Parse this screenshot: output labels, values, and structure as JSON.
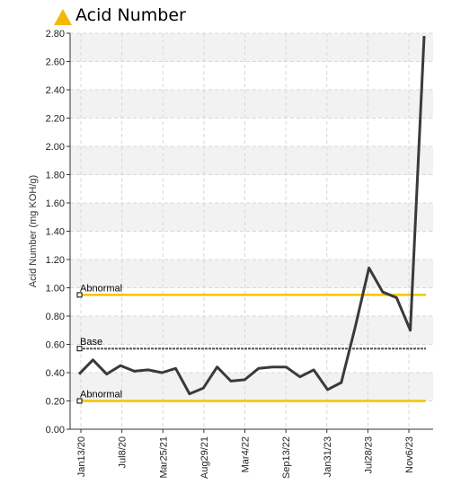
{
  "chart_data": {
    "type": "line",
    "title": "Acid Number",
    "ylabel": "Acid Number (mg KOH/g)",
    "ylim": [
      0,
      2.8
    ],
    "yticks": [
      "0.00",
      "0.20",
      "0.40",
      "0.60",
      "0.80",
      "1.00",
      "1.20",
      "1.40",
      "1.60",
      "1.80",
      "2.00",
      "2.20",
      "2.40",
      "2.60",
      "2.80"
    ],
    "grid": true,
    "xticks": [
      "Jan13/20",
      "Jul8/20",
      "Mar25/21",
      "Aug29/21",
      "Mar4/22",
      "Sep13/22",
      "Jan31/23",
      "Jul28/23",
      "Nov6/23"
    ],
    "series": [
      {
        "color": "#3a3a3a",
        "values": [
          0.39,
          0.49,
          0.39,
          0.45,
          0.41,
          0.42,
          0.4,
          0.43,
          0.25,
          0.29,
          0.44,
          0.34,
          0.35,
          0.43,
          0.44,
          0.44,
          0.37,
          0.42,
          0.28,
          0.33,
          0.72,
          1.14,
          0.97,
          0.93,
          0.7,
          2.78
        ]
      }
    ],
    "reference_lines": [
      {
        "label": "Abnormal",
        "value": 0.95,
        "color": "#f5c400"
      },
      {
        "label": "Base",
        "value": 0.57,
        "color": "#555555"
      },
      {
        "label": "Abnormal",
        "value": 0.2,
        "color": "#f5c400"
      }
    ]
  }
}
